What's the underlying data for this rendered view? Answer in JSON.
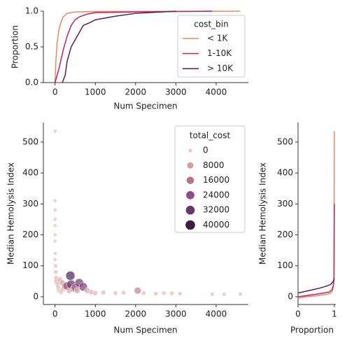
{
  "chart_data": [
    {
      "type": "line",
      "xlabel": "Num Specimen",
      "ylabel": "Proportion",
      "xlim": [
        -290,
        4800
      ],
      "ylim": [
        0,
        1
      ],
      "xticks": [
        0,
        1000,
        2000,
        3000,
        4000
      ],
      "yticks": [
        {
          "value": 0,
          "label": "0.0"
        },
        {
          "value": 0.5,
          "label": "0.5"
        },
        {
          "value": 1,
          "label": "1.0"
        }
      ],
      "legend": {
        "title": "cost_bin",
        "position": "upper right"
      },
      "series": [
        {
          "name": "< 1K",
          "color": "#ee8560",
          "x": [
            0,
            20,
            50,
            100,
            150,
            200,
            300,
            500,
            1000,
            4600
          ],
          "values": [
            0,
            0.3,
            0.55,
            0.75,
            0.85,
            0.92,
            0.97,
            0.99,
            0.995,
            1
          ]
        },
        {
          "name": "1-10K",
          "color": "#c3215a",
          "x": [
            0,
            100,
            200,
            300,
            400,
            500,
            600,
            800,
            1000,
            2000,
            3000,
            3900
          ],
          "values": [
            0,
            0.2,
            0.45,
            0.65,
            0.8,
            0.88,
            0.92,
            0.96,
            0.98,
            0.99,
            0.995,
            1
          ]
        },
        {
          "name": "> 10K",
          "color": "#5a1e50",
          "x": [
            180,
            250,
            300,
            400,
            500,
            600,
            700,
            900,
            1000,
            1500,
            2000,
            3000
          ],
          "values": [
            0,
            0.1,
            0.3,
            0.5,
            0.6,
            0.7,
            0.8,
            0.85,
            0.88,
            0.93,
            0.97,
            1
          ]
        }
      ]
    },
    {
      "type": "scatter",
      "xlabel": "Num Specimen",
      "ylabel": "Median Hemolysis Index",
      "xlim": [
        -290,
        4800
      ],
      "ylim": [
        -25,
        563
      ],
      "xticks": [
        0,
        1000,
        2000,
        3000,
        4000
      ],
      "yticks": [
        0,
        100,
        200,
        300,
        400,
        500
      ],
      "legend": {
        "title": "total_cost",
        "position": "upper right",
        "values": [
          0,
          8000,
          16000,
          24000,
          32000,
          40000
        ],
        "colors": [
          "#e9c6be",
          "#d09c9f",
          "#b5748f",
          "#8f4f80",
          "#643a6a",
          "#3b1e45"
        ]
      },
      "x": [
        0,
        0,
        0,
        0,
        0,
        0,
        0,
        0,
        0,
        10,
        20,
        30,
        40,
        60,
        80,
        100,
        120,
        150,
        180,
        200,
        250,
        300,
        350,
        380,
        400,
        450,
        500,
        550,
        600,
        700,
        800,
        900,
        1000,
        1200,
        1500,
        1700,
        2050,
        2200,
        2500,
        2700,
        2900,
        3100,
        3900,
        4200,
        4600
      ],
      "values": [
        535,
        310,
        280,
        250,
        230,
        200,
        180,
        140,
        120,
        100,
        80,
        60,
        50,
        40,
        30,
        20,
        55,
        15,
        45,
        25,
        35,
        35,
        20,
        68,
        40,
        25,
        30,
        20,
        45,
        32,
        20,
        15,
        12,
        14,
        12,
        13,
        20,
        12,
        10,
        12,
        11,
        10,
        8,
        8,
        9
      ],
      "sizes": [
        0,
        0,
        0,
        0,
        0,
        0,
        0,
        0,
        0,
        500,
        1000,
        2000,
        3000,
        2000,
        1500,
        1000,
        4000,
        800,
        6000,
        3000,
        10000,
        22000,
        5000,
        35000,
        30000,
        8000,
        20000,
        6000,
        28000,
        26000,
        5000,
        3000,
        2000,
        1500,
        1000,
        1000,
        12000,
        800,
        600,
        800,
        600,
        500,
        300,
        300,
        300
      ]
    },
    {
      "type": "line",
      "xlabel": "Proportion",
      "ylabel": "Median Hemolysis Index",
      "xlim": [
        0,
        1.04
      ],
      "ylim": [
        -25,
        563
      ],
      "xticks": [
        0,
        1
      ],
      "yticks": [
        0,
        100,
        200,
        300,
        400,
        500
      ],
      "series": [
        {
          "name": "< 1K",
          "color": "#ee8560",
          "x": [
            0,
            0.2,
            0.5,
            0.8,
            0.9,
            0.95,
            0.98,
            0.99,
            1
          ],
          "values": [
            -5,
            0,
            3,
            8,
            12,
            20,
            40,
            70,
            535
          ]
        },
        {
          "name": "1-10K",
          "color": "#c3215a",
          "x": [
            0,
            0.3,
            0.6,
            0.85,
            0.93,
            0.97,
            0.99,
            1
          ],
          "values": [
            0,
            5,
            10,
            15,
            22,
            35,
            60,
            300
          ]
        },
        {
          "name": "> 10K",
          "color": "#5a1e50",
          "x": [
            0,
            0.3,
            0.6,
            0.8,
            0.9,
            0.97,
            1
          ],
          "values": [
            12,
            20,
            28,
            35,
            40,
            50,
            60
          ]
        }
      ]
    }
  ]
}
